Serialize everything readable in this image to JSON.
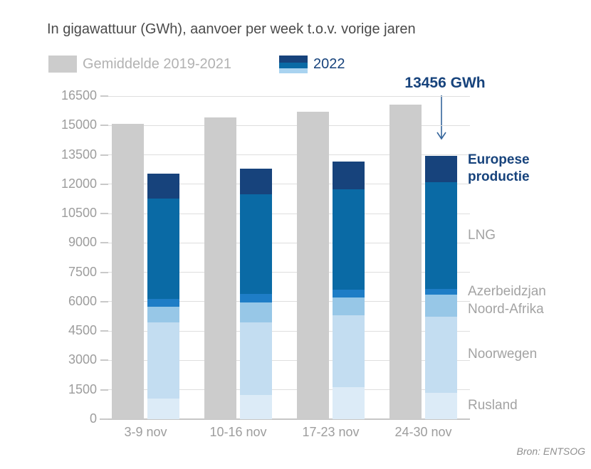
{
  "title": "In gigawattuur (GWh), aanvoer per week t.o.v. vorige jaren",
  "legend": {
    "average": {
      "label": "Gemiddelde 2019-2021",
      "color": "#cccccc"
    },
    "year2022": {
      "label": "2022",
      "swatch_colors": [
        "#17437c",
        "#0a6aa5",
        "#a9d3f0"
      ]
    }
  },
  "annotation": {
    "label": "13456 GWh",
    "value": 13456,
    "unit": "GWh"
  },
  "source": "Bron: ENTSOG",
  "colors": {
    "title_text": "#4b4b4b",
    "axis_text": "#9d9d9d",
    "gridline": "#dedede",
    "baseline": "#c6c6c6",
    "navy": "#17437c",
    "gray_bar": "#cccccc",
    "right_label_gray": "#a3a3a3"
  },
  "chart_data": {
    "type": "bar",
    "stacked": true,
    "title": "In gigawattuur (GWh), aanvoer per week t.o.v. vorige jaren",
    "categories": [
      "3-9 nov",
      "10-16 nov",
      "17-23 nov",
      "24-30 nov"
    ],
    "ylim": [
      0,
      16500
    ],
    "yticks": [
      0,
      1500,
      3000,
      4500,
      6000,
      7500,
      9000,
      10500,
      12000,
      13500,
      15000,
      16500
    ],
    "grid": true,
    "legend_position": "top",
    "average_series": {
      "name": "Gemiddelde 2019-2021",
      "color": "#cccccc",
      "values": [
        15100,
        15400,
        15700,
        16050
      ]
    },
    "stacked_series_2022": [
      {
        "name": "Rusland",
        "color": "#dcebf7",
        "label_color": "#a3a3a3",
        "values": [
          1050,
          1250,
          1650,
          1350
        ]
      },
      {
        "name": "Noorwegen",
        "color": "#c3ddf1",
        "label_color": "#a3a3a3",
        "values": [
          3900,
          3700,
          3650,
          3900
        ]
      },
      {
        "name": "Noord-Afrika",
        "color": "#97c7e7",
        "label_color": "#a3a3a3",
        "values": [
          800,
          1000,
          900,
          1100
        ]
      },
      {
        "name": "Azerbeidzjan",
        "color": "#1e7dc6",
        "label_color": "#a3a3a3",
        "values": [
          400,
          450,
          400,
          300
        ]
      },
      {
        "name": "LNG",
        "color": "#0a6aa5",
        "label_color": "#a3a3a3",
        "values": [
          5100,
          5100,
          5150,
          5450
        ]
      },
      {
        "name": "Europese productie",
        "color": "#17437c",
        "label_color": "#17437c",
        "values": [
          1300,
          1300,
          1400,
          1356
        ]
      }
    ],
    "totals_2022": [
      12550,
      12800,
      13150,
      13456
    ],
    "annotated_point": {
      "category": "24-30 nov",
      "total": 13456
    }
  }
}
